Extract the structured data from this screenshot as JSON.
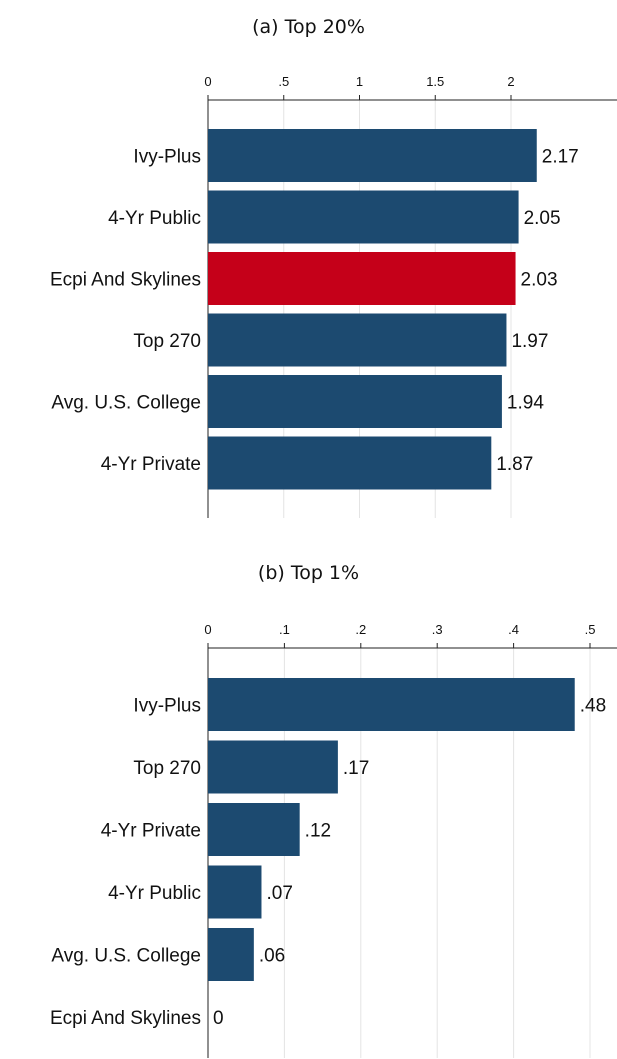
{
  "chart_data": [
    {
      "type": "bar",
      "orientation": "horizontal",
      "title": "(a) Top 20%",
      "categories": [
        "Ivy-Plus",
        "4-Yr Public",
        "Ecpi And Skylines",
        "Top 270",
        "Avg. U.S. College",
        "4-Yr Private"
      ],
      "values": [
        2.17,
        2.05,
        2.03,
        1.97,
        1.94,
        1.87
      ],
      "value_labels": [
        "2.17",
        "2.05",
        "2.03",
        "1.97",
        "1.94",
        "1.87"
      ],
      "highlight": "Ecpi And Skylines",
      "xticks": [
        0,
        0.5,
        1,
        1.5,
        2
      ],
      "xtick_labels": [
        "0",
        ".5",
        "1",
        "1.5",
        "2"
      ],
      "xlim": [
        0,
        2.7
      ],
      "axis_position": "top",
      "grid": true
    },
    {
      "type": "bar",
      "orientation": "horizontal",
      "title": "(b) Top 1%",
      "categories": [
        "Ivy-Plus",
        "Top 270",
        "4-Yr Private",
        "4-Yr Public",
        "Avg. U.S. College",
        "Ecpi And Skylines"
      ],
      "values": [
        0.48,
        0.17,
        0.12,
        0.07,
        0.06,
        0
      ],
      "value_labels": [
        ".48",
        ".17",
        ".12",
        ".07",
        ".06",
        "0"
      ],
      "highlight": "Ecpi And Skylines",
      "xticks": [
        0,
        0.1,
        0.2,
        0.3,
        0.4,
        0.5
      ],
      "xtick_labels": [
        "0",
        ".1",
        ".2",
        ".3",
        ".4",
        ".5"
      ],
      "xlim": [
        0,
        0.535
      ],
      "axis_position": "top",
      "grid": true
    }
  ],
  "colors": {
    "bar": "#1c4a70",
    "highlight": "#c50019",
    "grid": "#e4e4e4",
    "axis": "#222222"
  }
}
